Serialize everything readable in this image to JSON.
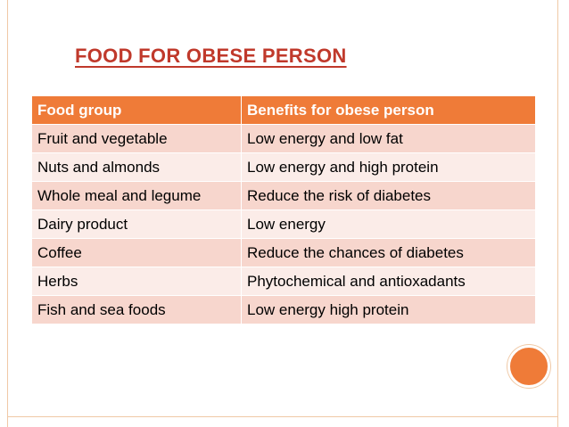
{
  "slide": {
    "title": "FOOD FOR OBESE PERSON",
    "colors": {
      "title": "#c0392b",
      "header_bg": "#ef7b38",
      "row_odd": "#f7d6cd",
      "row_even": "#fbece8",
      "accent_circle": "#ef7b38"
    }
  },
  "table": {
    "headers": [
      "Food group",
      "Benefits for obese person"
    ],
    "rows": [
      [
        "Fruit and vegetable",
        "Low energy and low fat"
      ],
      [
        "Nuts and almonds",
        "Low energy and high protein"
      ],
      [
        "Whole meal and legume",
        "Reduce the risk of diabetes"
      ],
      [
        "Dairy product",
        "Low energy"
      ],
      [
        "Coffee",
        "Reduce the chances of diabetes"
      ],
      [
        "Herbs",
        "Phytochemical and antioxadants"
      ],
      [
        "Fish and sea foods",
        "Low energy high protein"
      ]
    ]
  }
}
